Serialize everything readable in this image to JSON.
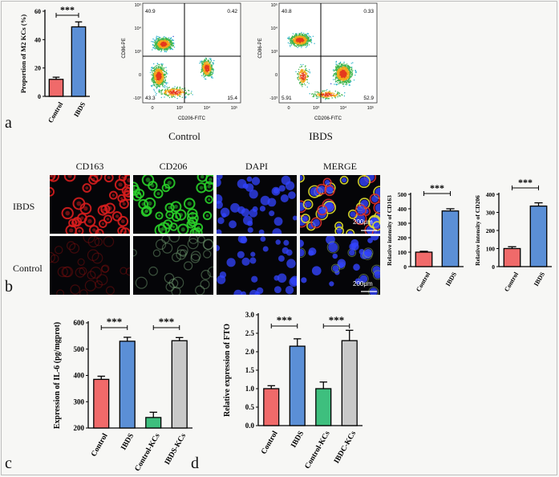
{
  "panels": {
    "a": {
      "letter": "a",
      "flow_x_label": "CD206-FITC",
      "flow_y_label": "CD86-PE",
      "flow_control": {
        "caption": "Control",
        "q1": "40.9",
        "q2": "0.42",
        "q3": "43.3",
        "q4": "15.4"
      },
      "flow_ibds": {
        "caption": "IBDS",
        "q1": "40.8",
        "q2": "0.33",
        "q3": "5.91",
        "q4": "52.9"
      },
      "flow_ticks_x": [
        "0",
        "10³",
        "10⁴",
        "10⁵"
      ],
      "flow_ticks_y": [
        "-10³",
        "0",
        "10³",
        "10⁴",
        "10⁵"
      ]
    },
    "b": {
      "letter": "b",
      "channels": [
        "CD163",
        "CD206",
        "DAPI",
        "MERGE"
      ],
      "rows": [
        "IBDS",
        "Control"
      ],
      "scale_label": "200μm"
    },
    "c": {
      "letter": "c"
    },
    "d": {
      "letter": "d"
    }
  },
  "chart_data": [
    {
      "id": "a-bar",
      "type": "bar",
      "categories": [
        "Control",
        "IBDS"
      ],
      "values": [
        12,
        49
      ],
      "errors": [
        1.5,
        3.5
      ],
      "ylabel": "Proportion of M2 KCs (%)",
      "ylim": [
        0,
        60
      ],
      "yticks": [
        0,
        20,
        40,
        60
      ],
      "colors": [
        "#f06a6a",
        "#5b8fd6"
      ],
      "significance": [
        {
          "from": 0,
          "to": 1,
          "label": "***"
        }
      ]
    },
    {
      "id": "b-cd163",
      "type": "bar",
      "categories": [
        "Control",
        "IBDS"
      ],
      "values": [
        100,
        385
      ],
      "errors": [
        6,
        15
      ],
      "ylabel": "Relative intensity of CD163",
      "ylim": [
        0,
        500
      ],
      "yticks": [
        0,
        100,
        200,
        300,
        400,
        500
      ],
      "colors": [
        "#f06a6a",
        "#5b8fd6"
      ],
      "significance": [
        {
          "from": 0,
          "to": 1,
          "label": "***"
        }
      ]
    },
    {
      "id": "b-cd206",
      "type": "bar",
      "categories": [
        "Control",
        "IBDS"
      ],
      "values": [
        100,
        335
      ],
      "errors": [
        10,
        18
      ],
      "ylabel": "Relative intensity of CD206",
      "ylim": [
        0,
        400
      ],
      "yticks": [
        0,
        100,
        200,
        300,
        400
      ],
      "colors": [
        "#f06a6a",
        "#5b8fd6"
      ],
      "significance": [
        {
          "from": 0,
          "to": 1,
          "label": "***"
        }
      ]
    },
    {
      "id": "c-il6",
      "type": "bar",
      "categories": [
        "Control",
        "IBDS",
        "Control-KCs",
        "IBDS-KCs"
      ],
      "values": [
        385,
        530,
        240,
        532
      ],
      "errors": [
        12,
        15,
        20,
        12
      ],
      "ylabel": "Expression of IL-6 (pg/mgprot)",
      "ylim": [
        200,
        600
      ],
      "yticks": [
        200,
        300,
        400,
        500,
        600
      ],
      "colors": [
        "#f06a6a",
        "#5b8fd6",
        "#3ebf7e",
        "#c9c9c9"
      ],
      "significance": [
        {
          "from": 0,
          "to": 1,
          "label": "***"
        },
        {
          "from": 2,
          "to": 3,
          "label": "***"
        }
      ]
    },
    {
      "id": "d-fto",
      "type": "bar",
      "categories": [
        "Control",
        "IBDS",
        "Control-KCs",
        "IBDC-KCs"
      ],
      "values": [
        1.0,
        2.15,
        1.0,
        2.3
      ],
      "errors": [
        0.08,
        0.2,
        0.18,
        0.28
      ],
      "ylabel": "Relative expression of FTO",
      "ylim": [
        0,
        3.0
      ],
      "yticks": [
        0.0,
        0.5,
        1.0,
        1.5,
        2.0,
        2.5,
        3.0
      ],
      "yticklabels": [
        "0.0",
        "0.5",
        "1.0",
        "1.5",
        "2.0",
        "2.5",
        "3.0"
      ],
      "colors": [
        "#f06a6a",
        "#5b8fd6",
        "#3ebf7e",
        "#c9c9c9"
      ],
      "significance": [
        {
          "from": 0,
          "to": 1,
          "label": "***"
        },
        {
          "from": 2,
          "to": 3,
          "label": "***"
        }
      ]
    }
  ]
}
